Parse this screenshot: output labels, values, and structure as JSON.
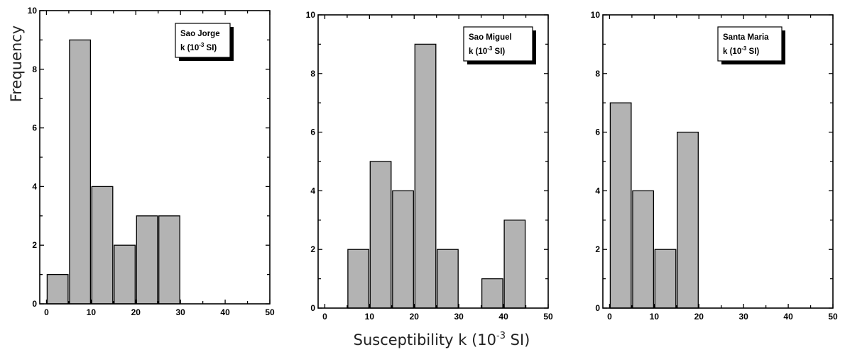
{
  "figure": {
    "ylabel": "Frequency",
    "xlabel": {
      "base": "Susceptibility k (10",
      "exp": "-3",
      "tail": " SI)"
    }
  },
  "chart_data": [
    {
      "type": "bar",
      "legend_line1": "Sao Jorge",
      "legend_line2": {
        "base": "k (10",
        "exp": "-3",
        "tail": " SI)"
      },
      "bin_width": 5,
      "bins": [
        [
          0,
          5
        ],
        [
          5,
          10
        ],
        [
          10,
          15
        ],
        [
          15,
          20
        ],
        [
          20,
          25
        ],
        [
          25,
          30
        ]
      ],
      "values": [
        1,
        9,
        4,
        2,
        3,
        3
      ],
      "value_labels": [
        "1",
        "9",
        "4",
        "2",
        "3",
        "3"
      ],
      "xlim": [
        -1.5,
        50
      ],
      "ylim": [
        0,
        10
      ],
      "xticks": [
        "0",
        "10",
        "20",
        "30",
        "40",
        "50"
      ],
      "yticks": [
        "0",
        "2",
        "4",
        "6",
        "8",
        "10"
      ],
      "legend_position": "top-right"
    },
    {
      "type": "bar",
      "legend_line1": "Sao Miguel",
      "legend_line2": {
        "base": "k (10",
        "exp": "-3",
        "tail": " SI)"
      },
      "bin_width": 5,
      "bins": [
        [
          5,
          10
        ],
        [
          10,
          15
        ],
        [
          15,
          20
        ],
        [
          20,
          25
        ],
        [
          25,
          30
        ],
        [
          35,
          40
        ],
        [
          40,
          45
        ]
      ],
      "values": [
        2,
        5,
        4,
        9,
        2,
        1,
        3
      ],
      "value_labels": [
        "2",
        "5",
        "4",
        "9",
        "2",
        "1",
        "3"
      ],
      "xlim": [
        -1.5,
        50
      ],
      "ylim": [
        0,
        10
      ],
      "xticks": [
        "0",
        "10",
        "20",
        "30",
        "40",
        "50"
      ],
      "yticks": [
        "0",
        "2",
        "4",
        "6",
        "8",
        "10"
      ],
      "legend_position": "top-right"
    },
    {
      "type": "bar",
      "legend_line1": "Santa Maria",
      "legend_line2": {
        "base": "k (10",
        "exp": "-3",
        "tail": " SI)"
      },
      "bin_width": 5,
      "bins": [
        [
          0,
          5
        ],
        [
          5,
          10
        ],
        [
          10,
          15
        ],
        [
          15,
          20
        ]
      ],
      "values": [
        7,
        4,
        2,
        6
      ],
      "value_labels": [
        "7",
        "4",
        "2",
        "6"
      ],
      "xlim": [
        -1.5,
        50
      ],
      "ylim": [
        0,
        10
      ],
      "xticks": [
        "0",
        "10",
        "20",
        "30",
        "40",
        "50"
      ],
      "yticks": [
        "0",
        "2",
        "4",
        "6",
        "8",
        "10"
      ],
      "legend_position": "top-right"
    }
  ]
}
